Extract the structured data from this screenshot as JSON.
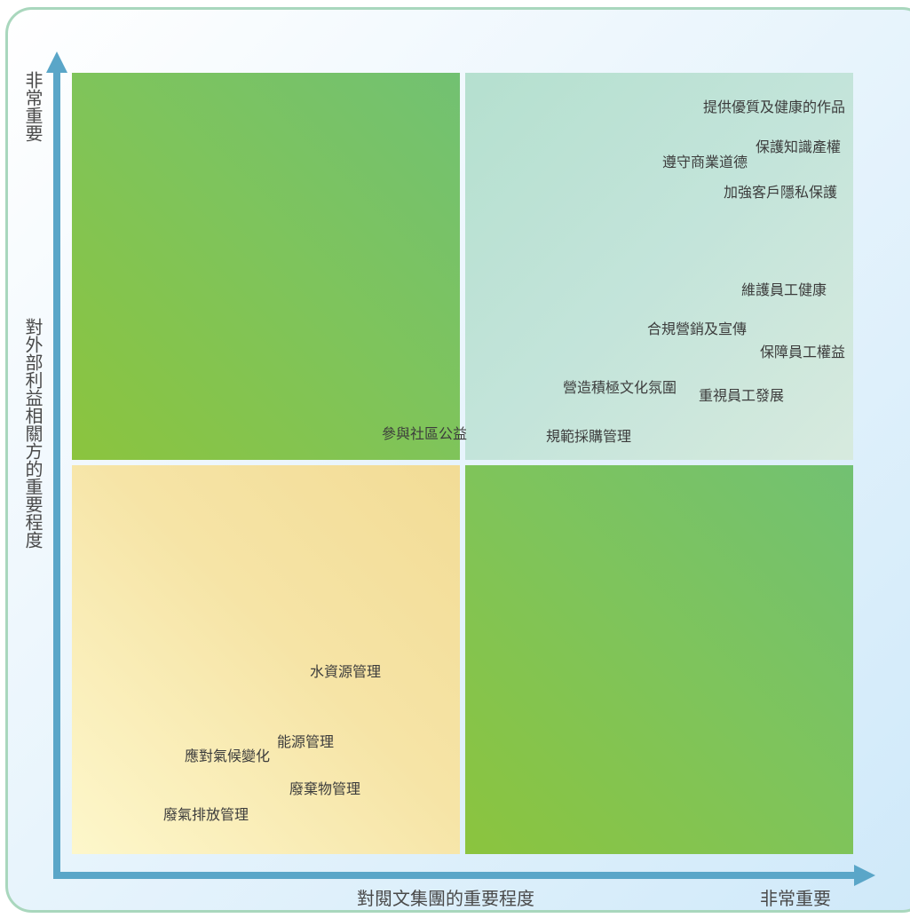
{
  "axes": {
    "y_top_label": "非常重要",
    "y_label": "對外部利益相關方的重要程度",
    "x_label": "對閱文集團的重要程度",
    "x_right_label": "非常重要"
  },
  "colors": {
    "axis": "#5aa6c8",
    "high_quadrant": "#7fc45a",
    "top_right_quadrant": "#c3e4da",
    "low_quadrant": "#f6e4a6",
    "border": "#a9d7bd"
  },
  "items": [
    "提供優質及健康的作品",
    "保護知識產權",
    "遵守商業道德",
    "加強客戶隱私保護",
    "維護員工健康",
    "合規營銷及宣傳",
    "保障員工權益",
    "營造積極文化氛圍",
    "重視員工發展",
    "參與社區公益",
    "規範採購管理",
    "水資源管理",
    "能源管理",
    "應對氣候變化",
    "廢棄物管理",
    "廢氣排放管理"
  ]
}
